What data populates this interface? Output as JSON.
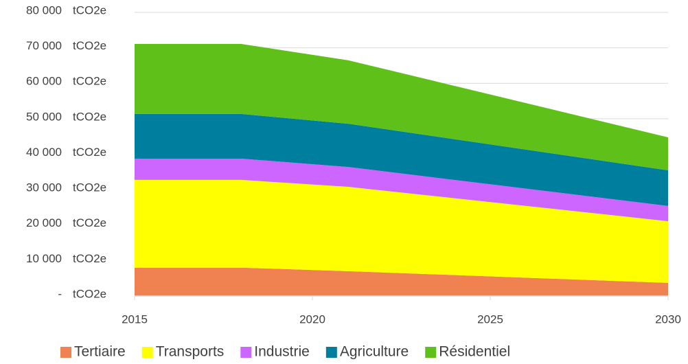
{
  "chart_data": {
    "type": "stacked_area",
    "x": [
      2015,
      2018,
      2021,
      2030
    ],
    "xlim": [
      2015,
      2030
    ],
    "xticks": [
      2015,
      2020,
      2025,
      2030
    ],
    "ylim": [
      0,
      80000
    ],
    "yticks": [
      {
        "value": 0,
        "label": "-"
      },
      {
        "value": 10000,
        "label": "10 000"
      },
      {
        "value": 20000,
        "label": "20 000"
      },
      {
        "value": 30000,
        "label": "30 000"
      },
      {
        "value": 40000,
        "label": "40 000"
      },
      {
        "value": 50000,
        "label": "50 000"
      },
      {
        "value": 60000,
        "label": "60 000"
      },
      {
        "value": 70000,
        "label": "70 000"
      },
      {
        "value": 80000,
        "label": "80 000"
      }
    ],
    "y_unit": "tCO2e",
    "grid": true,
    "legend": "bottom",
    "series": [
      {
        "name": "Tertiaire",
        "color": "#ef8250",
        "values": [
          8000,
          8000,
          7000,
          3700
        ]
      },
      {
        "name": "Transports",
        "color": "#ffff00",
        "values": [
          24750,
          24750,
          23800,
          17400
        ]
      },
      {
        "name": "Industrie",
        "color": "#cc66ff",
        "values": [
          6000,
          6000,
          5600,
          4300
        ]
      },
      {
        "name": "Agriculture",
        "color": "#007e9e",
        "values": [
          12600,
          12600,
          12200,
          10050
        ]
      },
      {
        "name": "Résidentiel",
        "color": "#5fc01a",
        "values": [
          19750,
          19750,
          17900,
          9300
        ]
      }
    ]
  }
}
